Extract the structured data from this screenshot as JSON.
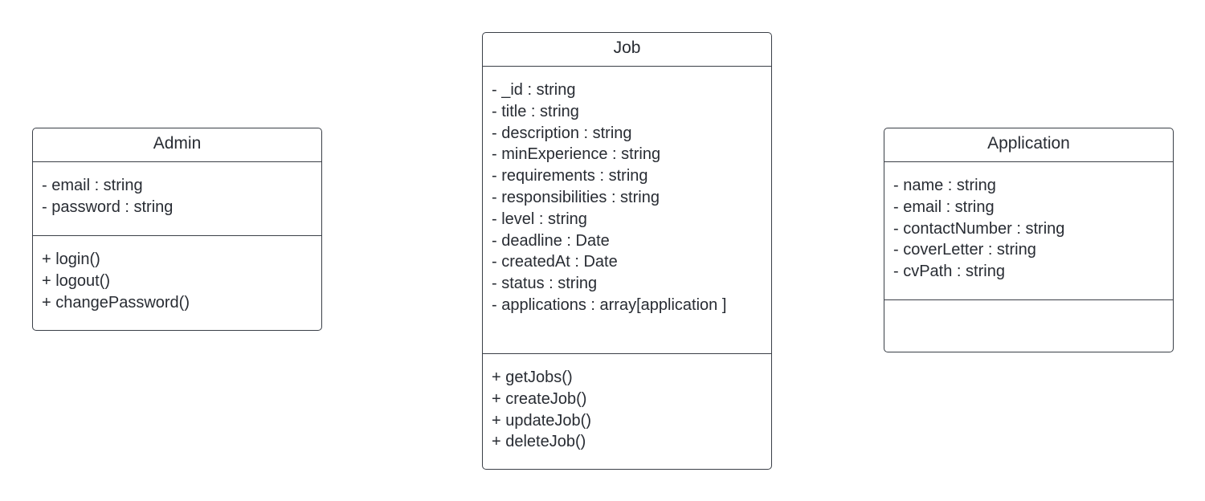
{
  "diagram": {
    "classes": [
      {
        "id": "admin",
        "name": "Admin",
        "attributes": [
          "- email : string",
          "- password : string"
        ],
        "methods": [
          "+ login()",
          "+ logout()",
          "+ changePassword()"
        ]
      },
      {
        "id": "job",
        "name": "Job",
        "attributes": [
          "- _id : string",
          "- title : string",
          "- description : string",
          "- minExperience : string",
          "- requirements : string",
          "- responsibilities : string",
          "- level : string",
          "- deadline : Date",
          "- createdAt : Date",
          "- status : string",
          "- applications : array[application ]"
        ],
        "methods": [
          "+ getJobs()",
          "+ createJob()",
          "+ updateJob()",
          "+ deleteJob()"
        ]
      },
      {
        "id": "application",
        "name": "Application",
        "attributes": [
          "- name : string",
          "- email : string",
          "- contactNumber : string",
          "- coverLetter : string",
          "- cvPath : string"
        ],
        "methods": []
      }
    ],
    "colors": {
      "border": "#3a3f47",
      "text": "#282c33",
      "background": "#ffffff"
    }
  }
}
